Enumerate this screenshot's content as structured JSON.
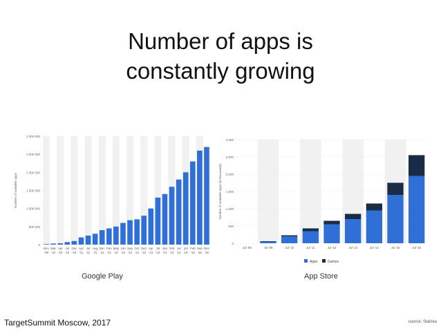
{
  "slide": {
    "title_line1": "Number of apps is",
    "title_line2": "constantly growing",
    "caption_left": "Google Play",
    "caption_right": "App Store",
    "footer": "TargetSummit Moscow, 2017",
    "source": "source: Statista"
  },
  "colors": {
    "bar": "#2f6fd6",
    "games": "#182c46",
    "band": "#f1f1f1",
    "axis": "#999999"
  },
  "chart_data": [
    {
      "type": "bar",
      "title": "",
      "xlabel": "",
      "ylabel": "Number of available apps",
      "ylim": [
        0,
        3000000
      ],
      "yticks": [
        0,
        500000,
        1000000,
        1500000,
        2000000,
        2500000,
        3000000
      ],
      "ytick_labels": [
        "0",
        "500 000",
        "1 000 000",
        "1 500 000",
        "2 000 000",
        "2 500 000",
        "3 000 000"
      ],
      "categories": [
        [
          "Dec",
          "'09"
        ],
        [
          "Mar",
          "'10"
        ],
        [
          "Apr",
          "'10"
        ],
        [
          "Jul",
          "'10"
        ],
        [
          "Dec",
          "'10"
        ],
        [
          "Apr",
          "'11"
        ],
        [
          "Jul",
          "'11"
        ],
        [
          "Aug",
          "'11"
        ],
        [
          "Dec",
          "'11"
        ],
        [
          "Feb",
          "'12"
        ],
        [
          "May",
          "'12"
        ],
        [
          "Jun",
          "'12"
        ],
        [
          "Sep",
          "'12"
        ],
        [
          "Oct",
          "'12"
        ],
        [
          "Dec",
          "'12"
        ],
        [
          "Apr",
          "'13"
        ],
        [
          "Jul",
          "'13"
        ],
        [
          "Jan",
          "'14"
        ],
        [
          "Feb",
          "'14"
        ],
        [
          "Jul",
          "'14"
        ],
        [
          "Jul",
          "'15"
        ],
        [
          "Feb",
          "'16"
        ],
        [
          "Sep",
          "'16"
        ],
        [
          "Dec",
          "'16"
        ]
      ],
      "values": [
        16000,
        30000,
        38000,
        70000,
        100000,
        200000,
        250000,
        300000,
        400000,
        450000,
        500000,
        600000,
        675000,
        700000,
        800000,
        1000000,
        1300000,
        1400000,
        1600000,
        1800000,
        2000000,
        2300000,
        2600000,
        2700000
      ]
    },
    {
      "type": "bar",
      "stacked": true,
      "title": "",
      "xlabel": "",
      "ylabel": "Number of available apps (in thousands)",
      "ylim": [
        0,
        3000
      ],
      "yticks": [
        0,
        500,
        1000,
        1500,
        2000,
        2500,
        3000
      ],
      "ytick_labels": [
        "0",
        "500",
        "1,000",
        "1,500",
        "2,000",
        "2,500",
        "3,000"
      ],
      "categories": [
        "Jul '08",
        "Jul '09",
        "Jul '10",
        "Jul '11",
        "Jul '12",
        "Jul '13",
        "Jul '14",
        "Jul '15",
        "Jul '16"
      ],
      "series": [
        {
          "name": "Apps",
          "values": [
            0,
            50,
            200,
            350,
            550,
            700,
            950,
            1400,
            1950
          ]
        },
        {
          "name": "Games",
          "values": [
            0,
            10,
            30,
            80,
            100,
            150,
            200,
            350,
            600
          ]
        }
      ],
      "legend_position": "bottom"
    }
  ]
}
